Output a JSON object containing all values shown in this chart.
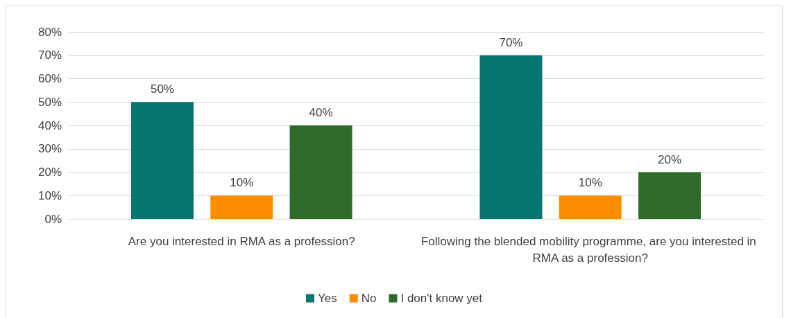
{
  "chart_data": {
    "type": "bar",
    "categories": [
      "Are you interested in RMA as a profession?",
      "Following the blended mobility programme, are you interested in RMA as a profession?"
    ],
    "series": [
      {
        "name": "Yes",
        "color": "#037670",
        "values": [
          50,
          70
        ],
        "value_labels": [
          "50%",
          "70%"
        ]
      },
      {
        "name": "No",
        "color": "#fe8c00",
        "values": [
          10,
          10
        ],
        "value_labels": [
          "10%",
          "10%"
        ]
      },
      {
        "name": "I don't know yet",
        "color": "#2e6b2b",
        "values": [
          40,
          20
        ],
        "value_labels": [
          "40%",
          "20%"
        ]
      }
    ],
    "ylim": [
      0,
      80
    ],
    "yticks": [
      {
        "value": 0,
        "label": "0%"
      },
      {
        "value": 10,
        "label": "10%"
      },
      {
        "value": 20,
        "label": "20%"
      },
      {
        "value": 30,
        "label": "30%"
      },
      {
        "value": 40,
        "label": "40%"
      },
      {
        "value": 50,
        "label": "50%"
      },
      {
        "value": 60,
        "label": "60%"
      },
      {
        "value": 70,
        "label": "70%"
      },
      {
        "value": 80,
        "label": "80%"
      }
    ],
    "grid": "y",
    "legend": "bottom"
  }
}
